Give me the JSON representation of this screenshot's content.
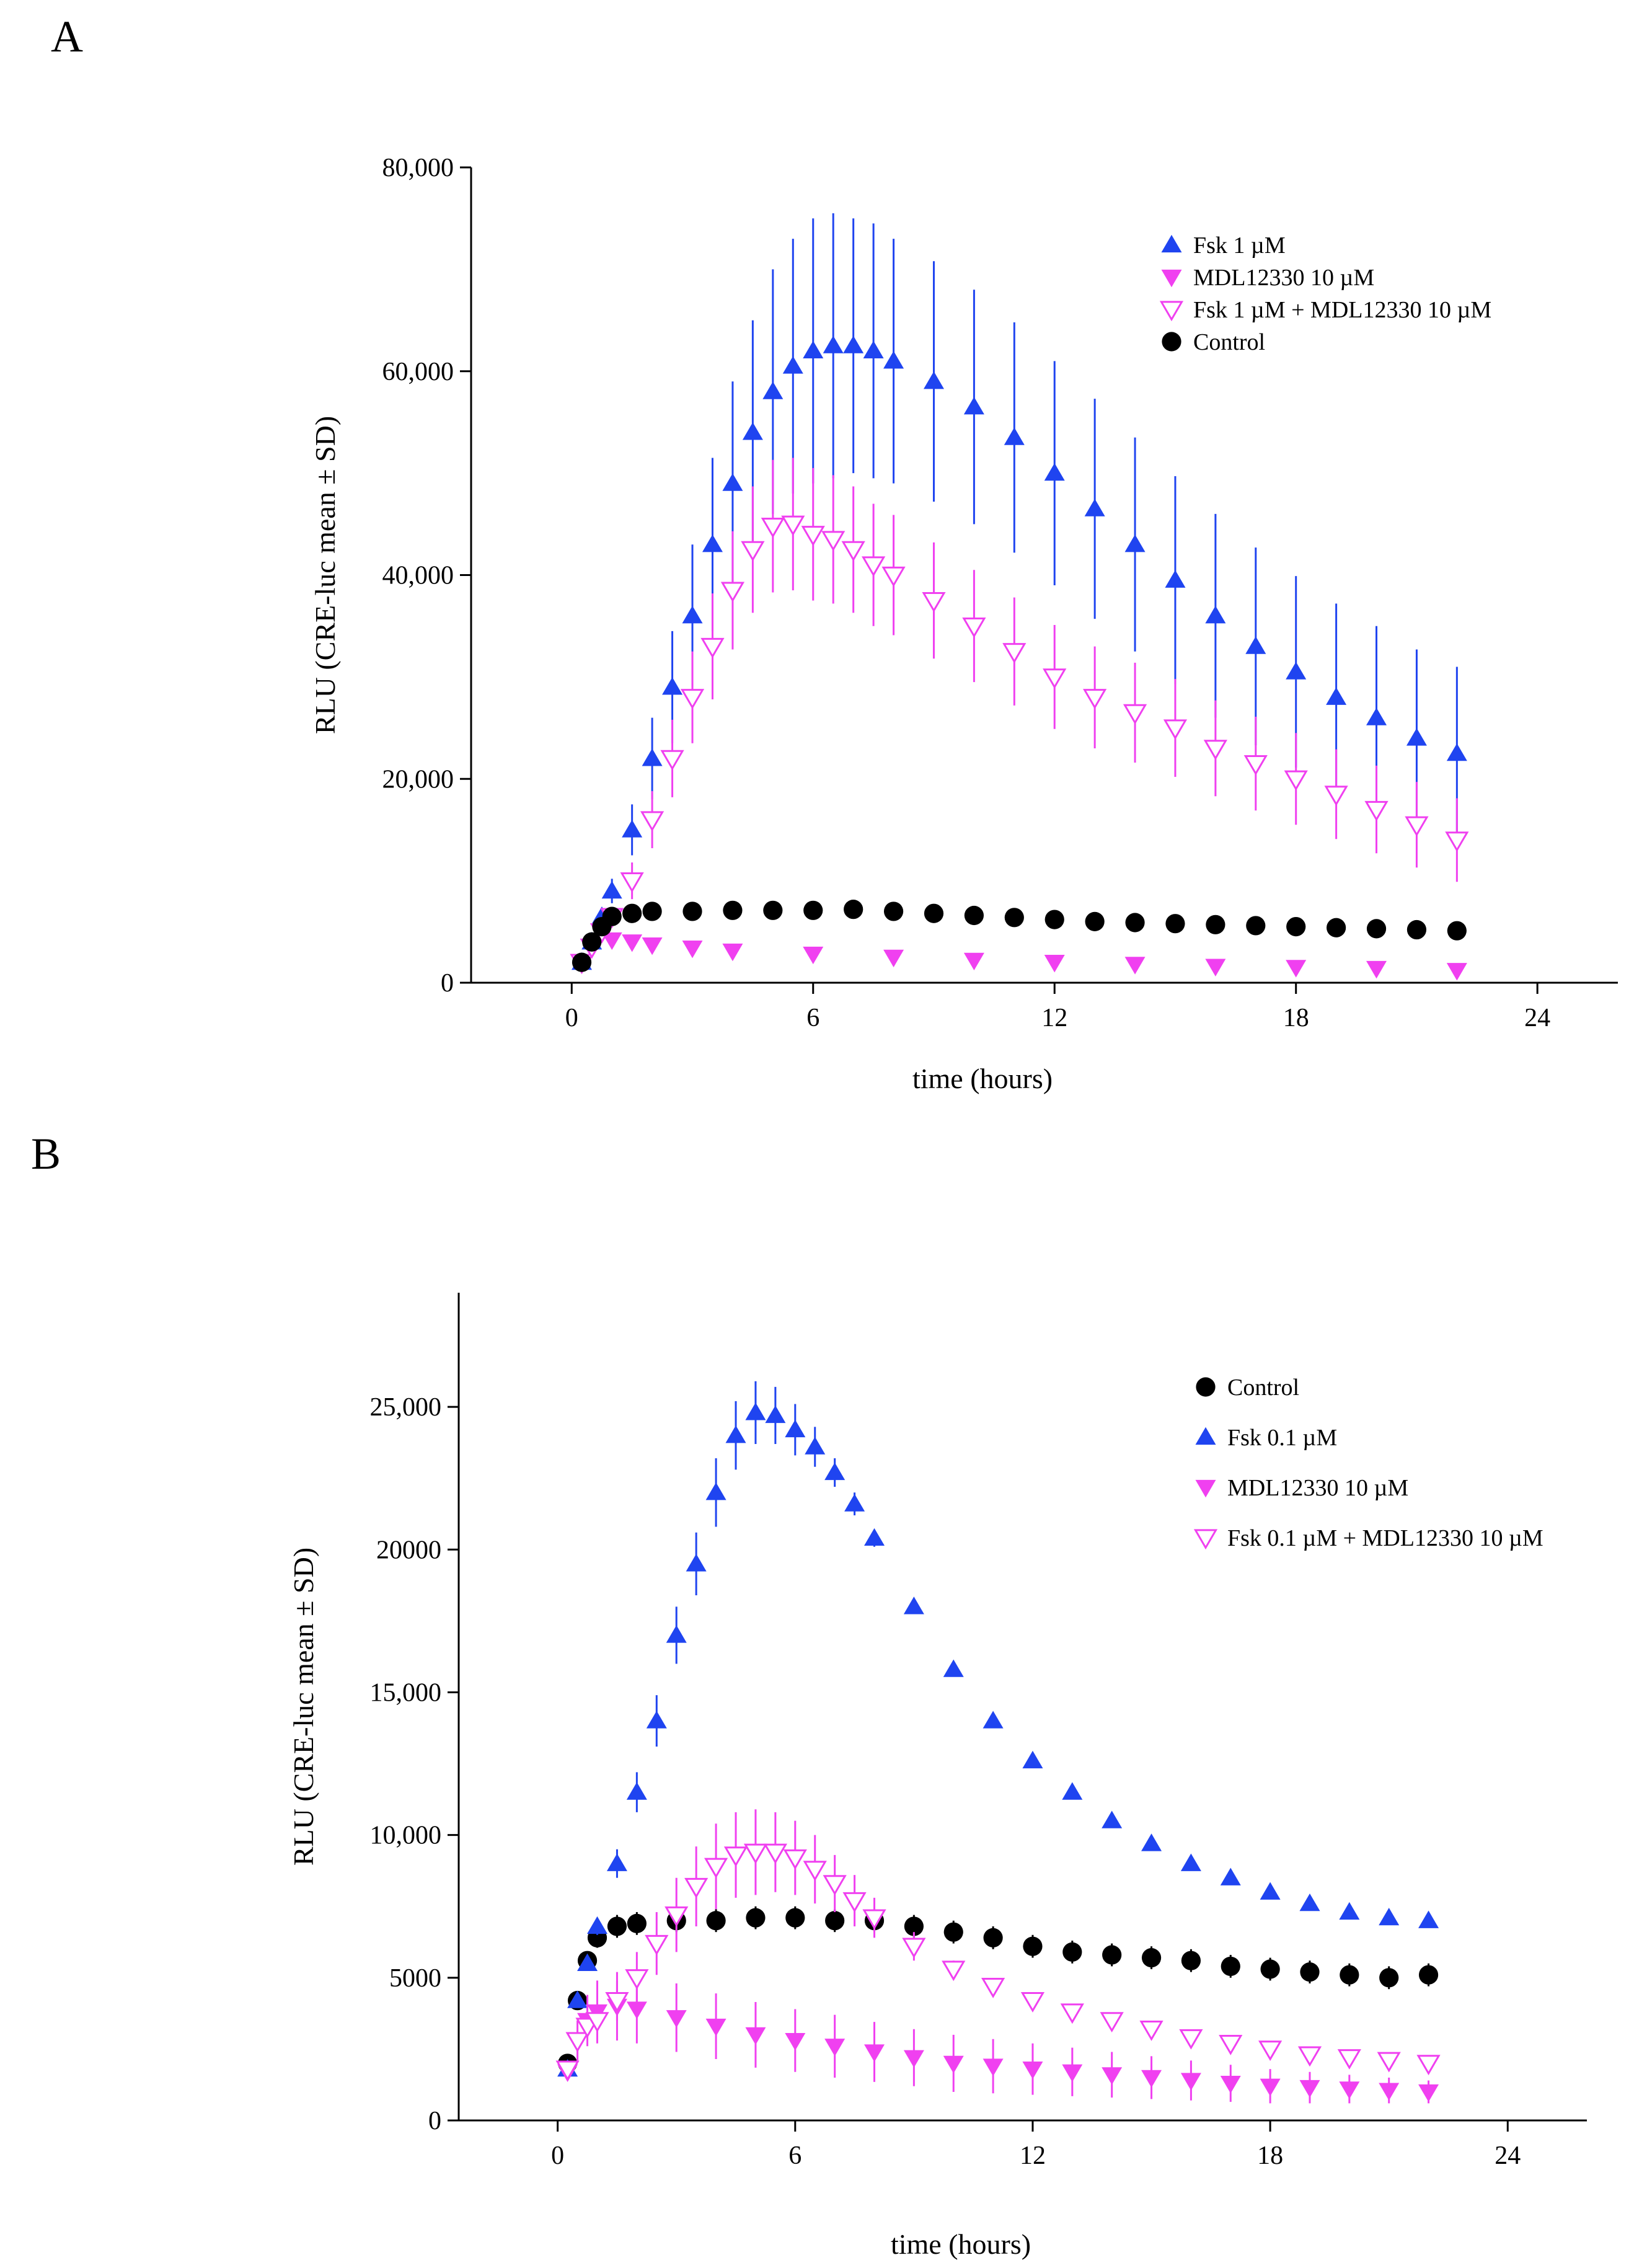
{
  "panels": [
    {
      "letter": "A",
      "colors": {
        "Fsk": "#1f44f0",
        "MDL": "#f040f0",
        "Combo": "#f040f0",
        "Control": "#000000"
      },
      "chart_data": {
        "type": "scatter",
        "xlabel": "time (hours)",
        "ylabel": "RLU (CRE-luc mean ± SD)",
        "xlim": [
          -2.5,
          26
        ],
        "ylim": [
          0,
          80000
        ],
        "xticks": [
          0,
          6,
          12,
          18,
          24
        ],
        "xtick_labels": [
          "0",
          "6",
          "12",
          "18",
          "24"
        ],
        "yticks": [
          0,
          20000,
          40000,
          60000,
          80000
        ],
        "ytick_labels": [
          "0",
          "20,000",
          "40,000",
          "60,000",
          "80,000"
        ],
        "legend_position": "top-right",
        "series": [
          {
            "name": "Fsk 1 µM",
            "key": "Fsk",
            "marker": "triangle-up",
            "x": [
              0.25,
              0.5,
              0.75,
              1,
              1.5,
              2,
              2.5,
              3,
              3.5,
              4,
              4.5,
              5,
              5.5,
              6,
              6.5,
              7,
              7.5,
              8,
              9,
              10,
              11,
              12,
              13,
              14,
              15,
              16,
              17,
              18,
              19,
              20,
              21,
              22
            ],
            "y": [
              2000,
              4000,
              6500,
              9000,
              15000,
              22000,
              29000,
              36000,
              43000,
              49000,
              54000,
              58000,
              60500,
              62000,
              62500,
              62500,
              62000,
              61000,
              59000,
              56500,
              53500,
              50000,
              46500,
              43000,
              39500,
              36000,
              33000,
              30500,
              28000,
              26000,
              24000,
              22500
            ],
            "err": [
              300,
              500,
              800,
              1200,
              2500,
              4000,
              5500,
              7000,
              8500,
              10000,
              11000,
              12000,
              12500,
              13000,
              13000,
              12500,
              12500,
              12000,
              11800,
              11500,
              11300,
              11000,
              10800,
              10500,
              10200,
              10000,
              9700,
              9400,
              9200,
              9000,
              8700,
              8500
            ]
          },
          {
            "name": "MDL12330 10 µM",
            "key": "MDL",
            "marker": "triangle-down",
            "x": [
              0.25,
              0.5,
              1,
              1.5,
              2,
              3,
              4,
              6,
              8,
              10,
              12,
              14,
              16,
              18,
              20,
              22
            ],
            "y": [
              2000,
              3500,
              4200,
              4000,
              3700,
              3400,
              3100,
              2800,
              2500,
              2200,
              2000,
              1800,
              1600,
              1500,
              1400,
              1200
            ],
            "err": [
              200,
              300,
              300,
              300,
              300,
              250,
              250,
              250,
              200,
              200,
              200,
              200,
              200,
              200,
              200,
              150
            ]
          },
          {
            "name": "Fsk 1 µM + MDL12330 10 µM",
            "key": "Combo",
            "marker": "triangle-down-open",
            "x": [
              0.25,
              0.5,
              0.75,
              1,
              1.5,
              2,
              2.5,
              3,
              3.5,
              4,
              4.5,
              5,
              5.5,
              6,
              6.5,
              7,
              7.5,
              8,
              9,
              10,
              11,
              12,
              13,
              14,
              15,
              16,
              17,
              18,
              19,
              20,
              21,
              22
            ],
            "y": [
              2000,
              3500,
              5000,
              6500,
              10000,
              16000,
              22000,
              28000,
              33000,
              38500,
              42500,
              44800,
              45000,
              44000,
              43500,
              42500,
              41000,
              40000,
              37500,
              35000,
              32500,
              30000,
              28000,
              26500,
              25000,
              23000,
              21500,
              20000,
              18500,
              17000,
              15500,
              14000
            ],
            "err": [
              300,
              400,
              600,
              800,
              1800,
              2800,
              3800,
              4500,
              5200,
              5800,
              6200,
              6500,
              6500,
              6500,
              6300,
              6200,
              6000,
              5900,
              5700,
              5500,
              5300,
              5100,
              5000,
              4900,
              4800,
              4700,
              4600,
              4500,
              4400,
              4300,
              4200,
              4100
            ]
          },
          {
            "name": "Control",
            "key": "Control",
            "marker": "circle",
            "x": [
              0.25,
              0.5,
              0.75,
              1,
              1.5,
              2,
              3,
              4,
              5,
              6,
              7,
              8,
              9,
              10,
              11,
              12,
              13,
              14,
              15,
              16,
              17,
              18,
              19,
              20,
              21,
              22
            ],
            "y": [
              2000,
              4000,
              5500,
              6500,
              6800,
              7000,
              7000,
              7100,
              7100,
              7100,
              7200,
              7000,
              6800,
              6600,
              6400,
              6200,
              6000,
              5900,
              5800,
              5700,
              5600,
              5500,
              5400,
              5300,
              5200,
              5100
            ],
            "err": [
              150,
              250,
              300,
              350,
              350,
              350,
              350,
              350,
              350,
              350,
              350,
              350,
              300,
              300,
              300,
              300,
              300,
              300,
              300,
              300,
              300,
              300,
              300,
              300,
              300,
              300
            ]
          }
        ]
      }
    },
    {
      "letter": "B",
      "colors": {
        "Fsk": "#1f44f0",
        "MDL": "#f040f0",
        "Combo": "#f040f0",
        "Control": "#000000"
      },
      "chart_data": {
        "type": "scatter",
        "xlabel": "time (hours)",
        "ylabel": "RLU (CRE-luc mean ± SD)",
        "xlim": [
          -2.5,
          26
        ],
        "ylim": [
          0,
          29000
        ],
        "xticks": [
          0,
          6,
          12,
          18,
          24
        ],
        "xtick_labels": [
          "0",
          "6",
          "12",
          "18",
          "24"
        ],
        "yticks": [
          0,
          5000,
          10000,
          15000,
          20000,
          25000
        ],
        "ytick_labels": [
          "0",
          "5000",
          "10,000",
          "15,000",
          "20000",
          "25,000"
        ],
        "legend_position": "top-right",
        "series": [
          {
            "name": "Control",
            "key": "Control",
            "marker": "circle",
            "x": [
              0.25,
              0.5,
              0.75,
              1,
              1.5,
              2,
              3,
              4,
              5,
              6,
              7,
              8,
              9,
              10,
              11,
              12,
              13,
              14,
              15,
              16,
              17,
              18,
              19,
              20,
              21,
              22
            ],
            "y": [
              2000,
              4200,
              5600,
              6400,
              6800,
              6900,
              7000,
              7000,
              7100,
              7100,
              7000,
              7000,
              6800,
              6600,
              6400,
              6100,
              5900,
              5800,
              5700,
              5600,
              5400,
              5300,
              5200,
              5100,
              5000,
              5100
            ],
            "err": [
              200,
              250,
              300,
              350,
              400,
              400,
              400,
              400,
              400,
              400,
              400,
              400,
              400,
              400,
              400,
              400,
              400,
              400,
              400,
              400,
              400,
              400,
              400,
              400,
              400,
              400
            ]
          },
          {
            "name": "Fsk 0.1 µM",
            "key": "Fsk",
            "marker": "triangle-up",
            "x": [
              0.25,
              0.5,
              0.75,
              1,
              1.5,
              2,
              2.5,
              3,
              3.5,
              4,
              4.5,
              5,
              5.5,
              6,
              6.5,
              7,
              7.5,
              8,
              9,
              10,
              11,
              12,
              13,
              14,
              15,
              16,
              17,
              18,
              19,
              20,
              21,
              22
            ],
            "y": [
              1800,
              4200,
              5500,
              6800,
              9000,
              11500,
              14000,
              17000,
              19500,
              22000,
              24000,
              24800,
              24700,
              24200,
              23600,
              22700,
              21600,
              20400,
              18000,
              15800,
              14000,
              12600,
              11500,
              10500,
              9700,
              9000,
              8500,
              8000,
              7600,
              7300,
              7100,
              7000
            ],
            "err": [
              100,
              150,
              200,
              300,
              500,
              700,
              900,
              1000,
              1100,
              1200,
              1200,
              1100,
              1000,
              900,
              700,
              500,
              400,
              300,
              200,
              200,
              200,
              200,
              200,
              200,
              200,
              200,
              200,
              200,
              200,
              200,
              200,
              200
            ]
          },
          {
            "name": "MDL12330 10 µM",
            "key": "MDL",
            "marker": "triangle-down",
            "x": [
              0.25,
              0.5,
              0.75,
              1,
              1.5,
              2,
              3,
              4,
              5,
              6,
              7,
              8,
              9,
              10,
              11,
              12,
              13,
              14,
              15,
              16,
              17,
              18,
              19,
              20,
              21,
              22
            ],
            "y": [
              1700,
              2800,
              3500,
              3800,
              4000,
              3900,
              3600,
              3300,
              3000,
              2800,
              2600,
              2400,
              2200,
              2000,
              1900,
              1800,
              1700,
              1600,
              1500,
              1400,
              1300,
              1200,
              1150,
              1100,
              1050,
              1000
            ],
            "err": [
              300,
              700,
              900,
              1100,
              1200,
              1200,
              1200,
              1150,
              1150,
              1100,
              1100,
              1050,
              1000,
              1000,
              950,
              900,
              850,
              800,
              750,
              700,
              650,
              600,
              550,
              500,
              450,
              400
            ]
          },
          {
            "name": "Fsk 0.1 µM + MDL12330 10 µM",
            "key": "Combo",
            "marker": "triangle-down-open",
            "x": [
              0.25,
              0.5,
              0.75,
              1,
              1.5,
              2,
              2.5,
              3,
              3.5,
              4,
              4.5,
              5,
              5.5,
              6,
              6.5,
              7,
              7.5,
              8,
              9,
              10,
              11,
              12,
              13,
              14,
              15,
              16,
              17,
              18,
              19,
              20,
              21,
              22
            ],
            "y": [
              1800,
              2800,
              3300,
              3500,
              4200,
              5000,
              6200,
              7200,
              8200,
              8900,
              9300,
              9400,
              9400,
              9200,
              8800,
              8300,
              7700,
              7100,
              6100,
              5300,
              4700,
              4200,
              3800,
              3500,
              3200,
              2900,
              2700,
              2500,
              2300,
              2200,
              2100,
              2000
            ],
            "err": [
              200,
              300,
              400,
              500,
              700,
              900,
              1100,
              1300,
              1400,
              1500,
              1500,
              1500,
              1400,
              1300,
              1200,
              1000,
              900,
              700,
              500,
              300,
              200,
              200,
              200,
              200,
              200,
              200,
              200,
              200,
              200,
              200,
              200,
              200
            ]
          }
        ]
      }
    }
  ]
}
